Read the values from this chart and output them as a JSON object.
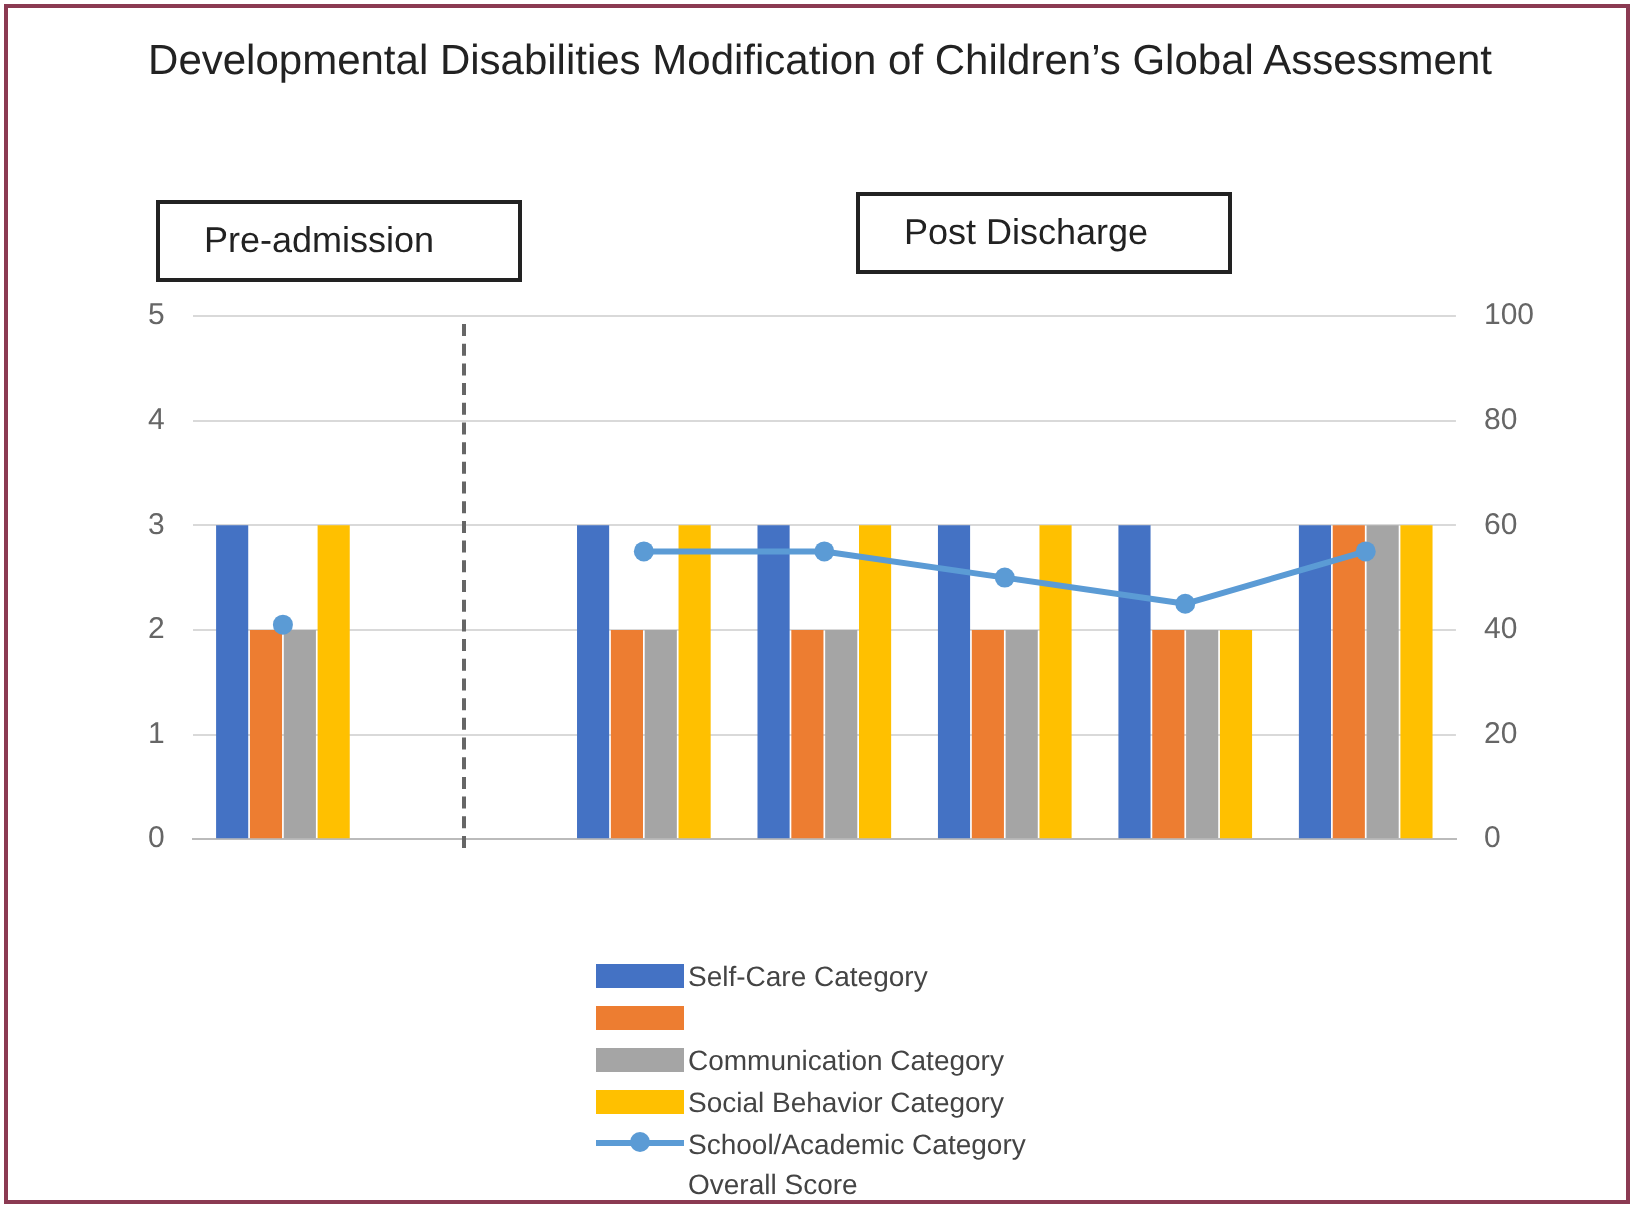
{
  "chart_data": {
    "type": "bar",
    "title": "Developmental Disabilities Modification of Children’s Global Assessment",
    "categories": [
      null,
      null,
      null,
      null,
      null,
      null,
      null
    ],
    "series": [
      {
        "name": "Self-Care Category",
        "color": "#4472c4",
        "values": [
          3,
          null,
          3,
          3,
          3,
          3,
          3
        ]
      },
      {
        "color": "#ed7d31",
        "values": [
          2,
          null,
          2,
          2,
          2,
          2,
          3
        ]
      },
      {
        "name": "Communication Category",
        "color": "#a5a5a5",
        "values": [
          2,
          null,
          2,
          2,
          2,
          2,
          3
        ]
      },
      {
        "name": "Social Behavior Category",
        "color": "#ffc000",
        "values": [
          3,
          null,
          3,
          3,
          3,
          2,
          3
        ]
      },
      {
        "name": "School/Academic Category Overall Score",
        "type": "line",
        "axis": "y2",
        "color": "#5b9bd5",
        "values": [
          null,
          null,
          55,
          55,
          50,
          45,
          55
        ]
      },
      {
        "type": "scatter",
        "axis": "y2",
        "color": "#5b9bd5",
        "values": [
          41,
          null,
          null,
          null,
          null,
          null,
          null
        ]
      }
    ],
    "ylim": [
      0,
      5
    ],
    "yticks": [
      0,
      1,
      2,
      3,
      4,
      5
    ],
    "y2lim": [
      0,
      100
    ],
    "y2ticks": [
      0,
      20,
      40,
      60,
      80,
      100
    ],
    "grid": "y",
    "legend": "bottom",
    "marker": "circle",
    "annotations": [
      "Pre-admission",
      "Post Discharge"
    ]
  }
}
